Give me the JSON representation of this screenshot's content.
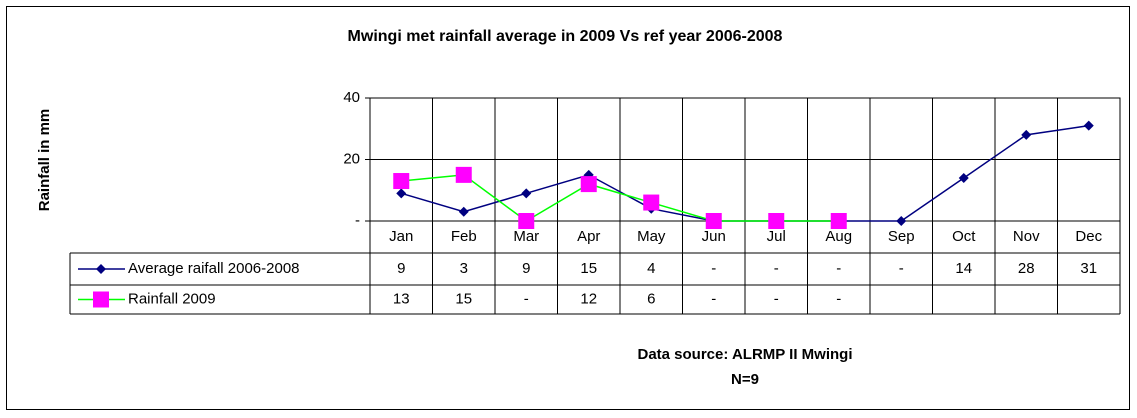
{
  "chart_data": {
    "type": "line",
    "title": "Mwingi met rainfall average in 2009 Vs ref year 2006-2008",
    "y_label": "Rainfall in mm",
    "categories": [
      "Jan",
      "Feb",
      "Mar",
      "Apr",
      "May",
      "Jun",
      "Jul",
      "Aug",
      "Sep",
      "Oct",
      "Nov",
      "Dec"
    ],
    "series": [
      {
        "name": "Average raifall 2006-2008",
        "color": "#000080",
        "marker": "diamond",
        "values": [
          9,
          3,
          9,
          15,
          4,
          0,
          0,
          0,
          0,
          14,
          28,
          31
        ],
        "value_labels": [
          "9",
          "3",
          "9",
          "15",
          "4",
          "-",
          "-",
          "-",
          "-",
          "14",
          "28",
          "31"
        ]
      },
      {
        "name": "Rainfall 2009",
        "color": "#00ff00",
        "marker_color": "#ff00ff",
        "marker": "square",
        "values": [
          13,
          15,
          0,
          12,
          6,
          0,
          0,
          0,
          null,
          null,
          null,
          null
        ],
        "value_labels": [
          "13",
          "15",
          "-",
          "12",
          "6",
          "-",
          "-",
          "-",
          null,
          null,
          null,
          null
        ]
      }
    ],
    "ylim": [
      0,
      40
    ],
    "yticks": [
      {
        "value": 0,
        "label": "-"
      },
      20,
      40
    ],
    "grid": true,
    "annotations": [
      "Data source: ALRMP II Mwingi",
      "N=9"
    ]
  }
}
